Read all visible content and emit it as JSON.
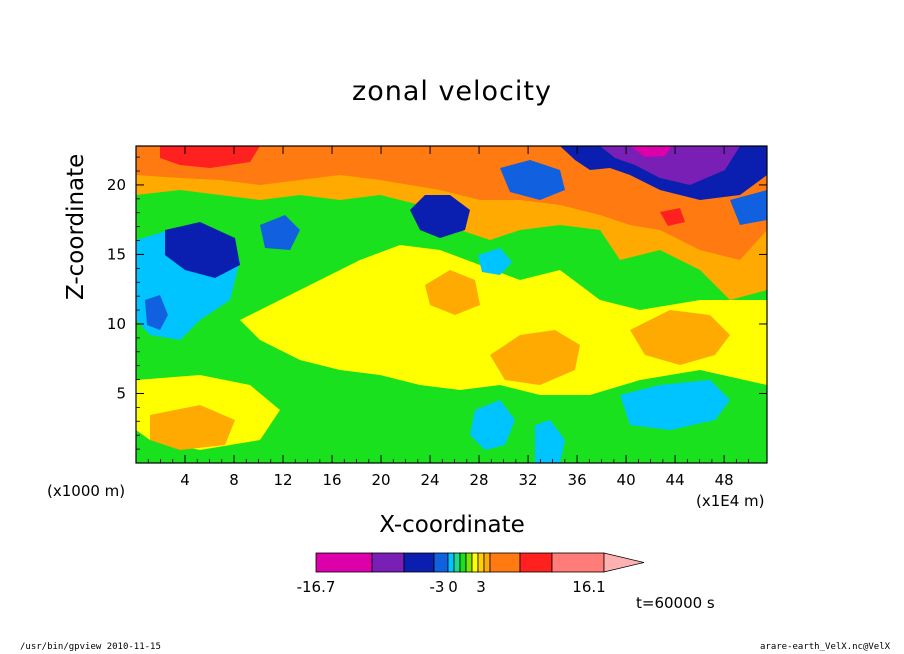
{
  "chart_data": {
    "type": "heatmap",
    "title": "zonal velocity",
    "xlabel": "X-coordinate",
    "ylabel": "Z-coordinate",
    "x_unit_left": "(x1000 m)",
    "x_unit_right": "(x1E4 m)",
    "xlim": [
      0,
      51.5
    ],
    "ylim": [
      0,
      22.8
    ],
    "x_ticks": [
      "4",
      "8",
      "12",
      "16",
      "20",
      "24",
      "28",
      "32",
      "36",
      "40",
      "44",
      "48"
    ],
    "y_ticks": [
      "5",
      "10",
      "15",
      "20"
    ],
    "colorbar": {
      "labels": [
        "-16.7",
        "-3",
        "0",
        "3",
        "16.1"
      ],
      "min": -16.7,
      "max": 16.1,
      "colors": [
        "#dd00aa",
        "#7a1fb5",
        "#0a1faf",
        "#1060e0",
        "#00c4ff",
        "#20d88a",
        "#19e11e",
        "#80e400",
        "#ffff00",
        "#ffd000",
        "#ffaa00",
        "#ff7a10",
        "#ff2020",
        "#ff7c78",
        "#ffb0b0"
      ]
    },
    "time_label": "t=60000 s"
  },
  "footer": {
    "left": "/usr/bin/gpview   2010-11-15",
    "right": "arare-earth_VelX.nc@VelX"
  }
}
